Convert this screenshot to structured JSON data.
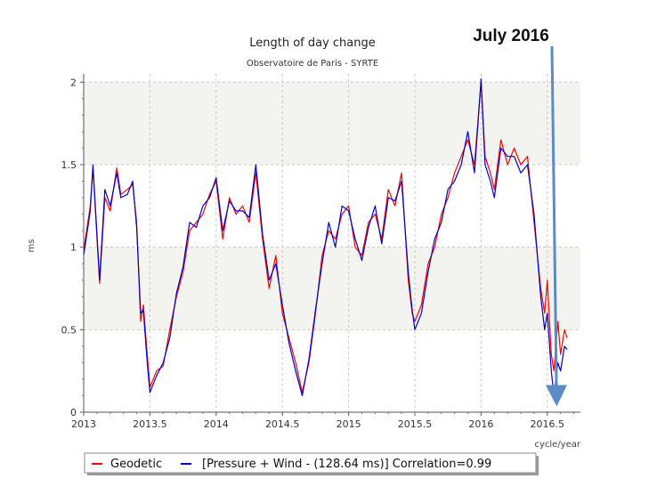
{
  "chart_data": {
    "type": "line",
    "title": "Length of day change",
    "subtitle": "Observatoire de Paris - SYRTE",
    "xlabel": "cycle/year",
    "ylabel": "ms",
    "xlim": [
      2013.0,
      2016.75
    ],
    "ylim": [
      0,
      2.05
    ],
    "xticks": [
      {
        "v": 2013,
        "label": "2013"
      },
      {
        "v": 2013.5,
        "label": "2013.5"
      },
      {
        "v": 2014,
        "label": "2014"
      },
      {
        "v": 2014.5,
        "label": "2014.5"
      },
      {
        "v": 2015,
        "label": "2015"
      },
      {
        "v": 2015.5,
        "label": "2015.5"
      },
      {
        "v": 2016,
        "label": "2016"
      },
      {
        "v": 2016.5,
        "label": "2016.5"
      }
    ],
    "yticks": [
      {
        "v": 0,
        "label": "0"
      },
      {
        "v": 0.5,
        "label": "0.5"
      },
      {
        "v": 1,
        "label": "1"
      },
      {
        "v": 1.5,
        "label": "1.5"
      },
      {
        "v": 2,
        "label": "2"
      }
    ],
    "grid": true,
    "legend_position": "bottom-left",
    "series": [
      {
        "name": "Geodetic",
        "color": "#ff0000",
        "x": [
          2013.0,
          2013.05,
          2013.07,
          2013.12,
          2013.16,
          2013.2,
          2013.25,
          2013.28,
          2013.33,
          2013.37,
          2013.4,
          2013.43,
          2013.45,
          2013.48,
          2013.5,
          2013.55,
          2013.6,
          2013.65,
          2013.7,
          2013.75,
          2013.8,
          2013.85,
          2013.9,
          2013.95,
          2014.0,
          2014.05,
          2014.1,
          2014.15,
          2014.2,
          2014.25,
          2014.3,
          2014.35,
          2014.4,
          2014.45,
          2014.5,
          2014.55,
          2014.6,
          2014.65,
          2014.7,
          2014.75,
          2014.8,
          2014.85,
          2014.9,
          2014.95,
          2015.0,
          2015.05,
          2015.1,
          2015.15,
          2015.2,
          2015.25,
          2015.3,
          2015.35,
          2015.4,
          2015.45,
          2015.48,
          2015.5,
          2015.55,
          2015.6,
          2015.65,
          2015.7,
          2015.75,
          2015.8,
          2015.85,
          2015.9,
          2015.95,
          2016.0,
          2016.03,
          2016.07,
          2016.1,
          2016.15,
          2016.2,
          2016.25,
          2016.3,
          2016.35,
          2016.4,
          2016.45,
          2016.48,
          2016.5,
          2016.53,
          2016.55,
          2016.58,
          2016.6,
          2016.63,
          2016.65
        ],
        "y": [
          0.98,
          1.25,
          1.48,
          0.78,
          1.3,
          1.22,
          1.48,
          1.32,
          1.35,
          1.38,
          1.15,
          0.55,
          0.65,
          0.35,
          0.15,
          0.25,
          0.28,
          0.5,
          0.7,
          0.85,
          1.1,
          1.15,
          1.2,
          1.32,
          1.4,
          1.05,
          1.3,
          1.2,
          1.25,
          1.15,
          1.45,
          1.05,
          0.75,
          0.95,
          0.6,
          0.45,
          0.3,
          0.12,
          0.3,
          0.6,
          0.95,
          1.1,
          1.05,
          1.2,
          1.25,
          1.0,
          0.95,
          1.15,
          1.2,
          1.05,
          1.35,
          1.25,
          1.45,
          0.8,
          0.6,
          0.55,
          0.65,
          0.9,
          1.0,
          1.2,
          1.3,
          1.45,
          1.55,
          1.65,
          1.5,
          2.0,
          1.55,
          1.45,
          1.35,
          1.65,
          1.5,
          1.6,
          1.5,
          1.55,
          1.15,
          0.75,
          0.6,
          0.8,
          0.35,
          0.25,
          0.55,
          0.35,
          0.5,
          0.45
        ]
      },
      {
        "name": "[Pressure + Wind - (128.64 ms)] Correlation=0.99",
        "color": "#0000cc",
        "x": [
          2013.0,
          2013.05,
          2013.07,
          2013.12,
          2013.16,
          2013.2,
          2013.25,
          2013.28,
          2013.33,
          2013.37,
          2013.4,
          2013.43,
          2013.45,
          2013.48,
          2013.5,
          2013.55,
          2013.6,
          2013.65,
          2013.7,
          2013.75,
          2013.8,
          2013.85,
          2013.9,
          2013.95,
          2014.0,
          2014.05,
          2014.1,
          2014.15,
          2014.2,
          2014.25,
          2014.3,
          2014.35,
          2014.4,
          2014.45,
          2014.5,
          2014.55,
          2014.6,
          2014.65,
          2014.7,
          2014.75,
          2014.8,
          2014.85,
          2014.9,
          2014.95,
          2015.0,
          2015.05,
          2015.1,
          2015.15,
          2015.2,
          2015.25,
          2015.3,
          2015.35,
          2015.4,
          2015.45,
          2015.48,
          2015.5,
          2015.55,
          2015.6,
          2015.65,
          2015.7,
          2015.75,
          2015.8,
          2015.85,
          2015.9,
          2015.95,
          2016.0,
          2016.03,
          2016.07,
          2016.1,
          2016.15,
          2016.2,
          2016.25,
          2016.3,
          2016.35,
          2016.4,
          2016.45,
          2016.48,
          2016.5,
          2016.53,
          2016.55,
          2016.58,
          2016.6,
          2016.63,
          2016.65
        ],
        "y": [
          0.95,
          1.22,
          1.5,
          0.8,
          1.35,
          1.25,
          1.45,
          1.3,
          1.32,
          1.4,
          1.12,
          0.6,
          0.62,
          0.3,
          0.12,
          0.22,
          0.3,
          0.45,
          0.72,
          0.88,
          1.15,
          1.12,
          1.25,
          1.3,
          1.42,
          1.1,
          1.28,
          1.22,
          1.22,
          1.18,
          1.5,
          1.08,
          0.8,
          0.9,
          0.65,
          0.42,
          0.25,
          0.1,
          0.32,
          0.62,
          0.9,
          1.15,
          1.0,
          1.25,
          1.22,
          1.05,
          0.92,
          1.12,
          1.25,
          1.02,
          1.3,
          1.28,
          1.4,
          0.85,
          0.62,
          0.5,
          0.6,
          0.85,
          1.05,
          1.15,
          1.35,
          1.4,
          1.5,
          1.7,
          1.45,
          2.02,
          1.5,
          1.4,
          1.3,
          1.6,
          1.55,
          1.55,
          1.45,
          1.5,
          1.2,
          0.7,
          0.5,
          0.6,
          0.25,
          0.1,
          0.3,
          0.25,
          0.4,
          0.38
        ]
      }
    ],
    "annotations": [
      {
        "text": "July 2016",
        "x_from": 2016.48,
        "y_from": 2.25,
        "x_to": 2016.57,
        "y_to": 0.1
      }
    ]
  },
  "legend": {
    "geodetic": "Geodetic",
    "pressure_wind": "[Pressure + Wind - (128.64 ms)] Correlation=0.99"
  }
}
